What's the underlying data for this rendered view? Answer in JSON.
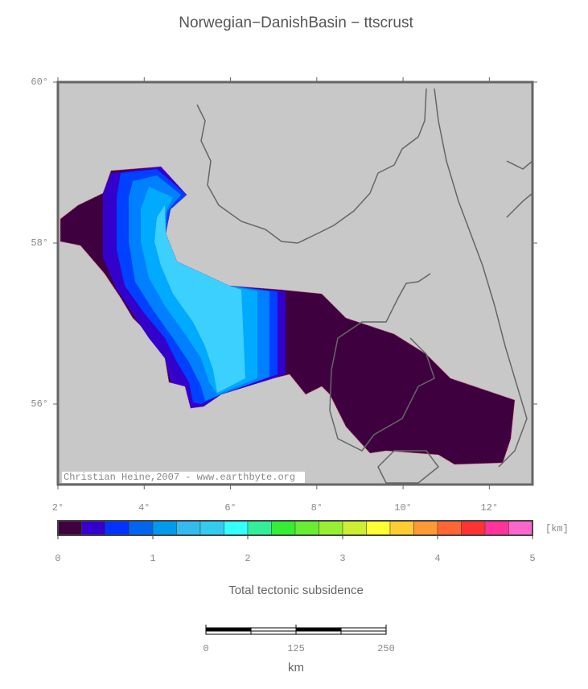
{
  "map": {
    "title": "Norwegian−DanishBasin − ttscrust",
    "lonlim": [
      2,
      13
    ],
    "latlim": [
      55,
      60
    ],
    "lonticks": [
      {
        "value": 2,
        "label": "2°"
      },
      {
        "value": 4,
        "label": "4°"
      },
      {
        "value": 6,
        "label": "6°"
      },
      {
        "value": 8,
        "label": "8°"
      },
      {
        "value": 10,
        "label": "10°"
      },
      {
        "value": 12,
        "label": "12°"
      }
    ],
    "latticks": [
      {
        "value": 56,
        "label": "56°"
      },
      {
        "value": 58,
        "label": "58°"
      },
      {
        "value": 60,
        "label": "60°"
      }
    ],
    "credit": "Christian Heine,2007 - www.earthbyte.org"
  },
  "colorbar": {
    "lim": [
      0,
      5
    ],
    "ticks": [
      0,
      1,
      2,
      3,
      4,
      5
    ],
    "unit": "[km]",
    "label": "Total tectonic subsidence",
    "colors": [
      "#3f0040",
      "#3300cc",
      "#0033ff",
      "#0066ee",
      "#0099ee",
      "#33bbee",
      "#33ccee",
      "#33ffff",
      "#33ee99",
      "#33ee33",
      "#66ee33",
      "#99ee33",
      "#ccee33",
      "#ffff33",
      "#ffcc33",
      "#ff9933",
      "#ff6633",
      "#ff3333",
      "#ff3399",
      "#ff66cc",
      "#ff99ee",
      "#ffddee"
    ]
  },
  "scalebar": {
    "lim": [
      0,
      250
    ],
    "ticks": [
      0,
      125,
      250
    ],
    "unit": "km"
  }
}
